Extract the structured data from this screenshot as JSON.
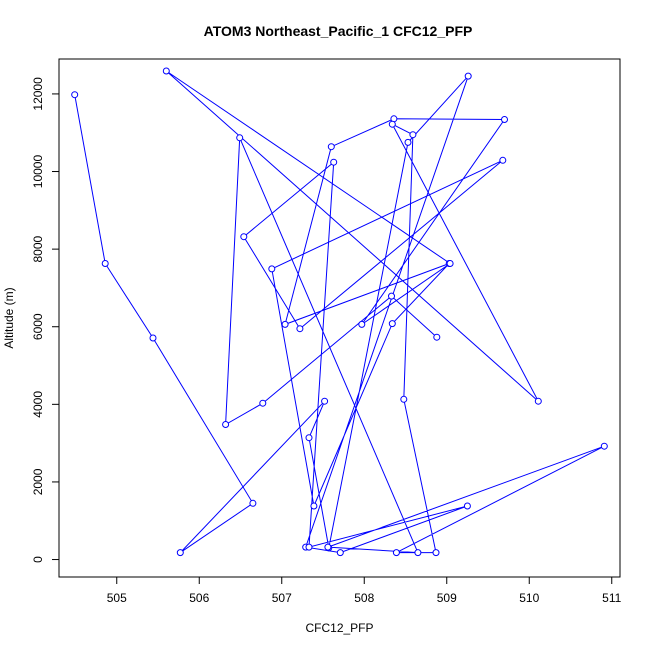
{
  "chart_data": {
    "type": "line",
    "title": "ATOM3 Northeast_Pacific_1 CFC12_PFP",
    "xlabel": "CFC12_PFP",
    "ylabel": "Altitude (m)",
    "xlim": [
      504.3,
      511.1
    ],
    "ylim": [
      -450,
      12900
    ],
    "x_ticks": [
      505,
      506,
      507,
      508,
      509,
      510,
      511
    ],
    "y_ticks": [
      0,
      2000,
      4000,
      6000,
      8000,
      10000,
      12000
    ],
    "grid": false,
    "legend": "none",
    "marker": "open-circle",
    "line_color": "#0000ff",
    "series": [
      {
        "x": [
          504.49,
          504.86,
          505.44,
          506.65,
          505.77,
          507.52,
          507.33,
          507.57,
          508.53,
          509.26,
          507.29,
          507.71,
          509.25,
          507.33,
          507.63,
          506.54,
          507.22,
          509.68,
          506.88,
          507.39,
          508.34,
          509.03,
          507.04,
          507.6,
          508.36,
          509.7,
          507.97,
          509.04,
          505.6,
          510.11,
          508.34,
          508.59,
          508.48,
          508.87,
          508.39,
          510.91,
          507.56,
          508.65,
          506.49,
          506.32,
          506.77,
          508.33,
          508.88
        ],
        "y": [
          11980,
          7630,
          5710,
          1450,
          180,
          4080,
          3140,
          300,
          10750,
          12460,
          320,
          180,
          1380,
          320,
          10240,
          8320,
          5950,
          10290,
          7490,
          1380,
          6080,
          7630,
          6060,
          10640,
          11360,
          11340,
          6060,
          7630,
          12590,
          4080,
          11220,
          10950,
          4130,
          180,
          180,
          2920,
          320,
          180,
          10870,
          3480,
          4030,
          6790,
          5730
        ]
      }
    ]
  }
}
